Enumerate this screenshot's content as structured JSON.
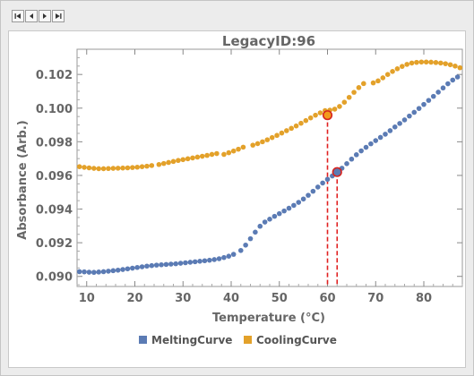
{
  "toolbar": {
    "buttons": [
      {
        "name": "first-page-button",
        "icon": "skip-to-start-icon"
      },
      {
        "name": "previous-page-button",
        "icon": "step-back-icon"
      },
      {
        "name": "next-page-button",
        "icon": "step-forward-icon"
      },
      {
        "name": "last-page-button",
        "icon": "skip-to-end-icon"
      }
    ]
  },
  "colors": {
    "melting": "#5b7bb4",
    "cooling": "#e3a12a",
    "marker_cooling_fill": "#f29a1c",
    "marker_outline": "#d6231e",
    "marker_melting_fill": "#5b7bb4",
    "vline": "#e02020",
    "text": "#666666"
  },
  "chart_data": {
    "type": "scatter",
    "title": "LegacyID:96",
    "xlabel": "Temperature  (°C)",
    "ylabel": "Absorbance  (Arb.)",
    "xlim": [
      8,
      88
    ],
    "ylim": [
      0.0894,
      0.1035
    ],
    "xticks": [
      10,
      20,
      30,
      40,
      50,
      60,
      70,
      80
    ],
    "yticks": [
      0.09,
      0.092,
      0.094,
      0.096,
      0.098,
      0.1,
      0.102
    ],
    "ytick_labels": [
      "0.090",
      "0.092",
      "0.094",
      "0.096",
      "0.098",
      "0.100",
      "0.102"
    ],
    "legend_position": "bottom",
    "series": [
      {
        "name": "MeltingCurve",
        "x": [
          8.5,
          9.5,
          10.5,
          11.5,
          12.5,
          13.5,
          14.5,
          15.5,
          16.5,
          17.5,
          18.5,
          19.5,
          20.5,
          21.5,
          22.5,
          23.5,
          24.5,
          25.5,
          26.5,
          27.5,
          28.5,
          29.5,
          30.5,
          31.5,
          32.5,
          33.5,
          34.5,
          35.5,
          36.5,
          37.5,
          38.5,
          39.5,
          40.5,
          42.0,
          43.0,
          44.0,
          45.0,
          46.0,
          47.0,
          48.0,
          49.0,
          50.0,
          51.0,
          52.0,
          53.0,
          54.0,
          55.0,
          56.0,
          57.0,
          58.0,
          59.0,
          60.0,
          61.0,
          62.0,
          63.0,
          64.0,
          65.0,
          66.0,
          67.0,
          68.0,
          69.0,
          70.0,
          71.0,
          72.0,
          73.0,
          74.0,
          75.0,
          76.0,
          77.0,
          78.0,
          79.0,
          80.0,
          81.0,
          82.0,
          83.0,
          84.0,
          85.0,
          86.0,
          87.0
        ],
        "y": [
          0.09028,
          0.09027,
          0.09025,
          0.09024,
          0.09026,
          0.09028,
          0.09031,
          0.09034,
          0.09037,
          0.09041,
          0.09045,
          0.09049,
          0.09053,
          0.09057,
          0.09061,
          0.09064,
          0.09067,
          0.09069,
          0.09071,
          0.09073,
          0.09075,
          0.09078,
          0.09081,
          0.09084,
          0.09087,
          0.0909,
          0.09093,
          0.09096,
          0.091,
          0.09105,
          0.09112,
          0.0912,
          0.09131,
          0.09154,
          0.09186,
          0.09224,
          0.09263,
          0.09298,
          0.09323,
          0.0934,
          0.09357,
          0.09373,
          0.09389,
          0.09405,
          0.09422,
          0.0944,
          0.0946,
          0.09482,
          0.09506,
          0.09531,
          0.09555,
          0.09577,
          0.09597,
          0.09618,
          0.09643,
          0.0967,
          0.09697,
          0.09723,
          0.09746,
          0.09767,
          0.09788,
          0.09807,
          0.09826,
          0.09845,
          0.09866,
          0.09888,
          0.09909,
          0.0993,
          0.09953,
          0.09975,
          0.09998,
          0.10022,
          0.10046,
          0.1007,
          0.10095,
          0.1012,
          0.10145,
          0.10167,
          0.10185
        ]
      },
      {
        "name": "CoolingCurve",
        "x": [
          8.5,
          9.5,
          10.5,
          11.5,
          12.5,
          13.5,
          14.5,
          15.5,
          16.5,
          17.5,
          18.5,
          19.5,
          20.5,
          21.5,
          22.5,
          23.5,
          25.0,
          26.0,
          27.0,
          28.0,
          29.0,
          30.0,
          31.0,
          32.0,
          33.0,
          34.0,
          35.0,
          36.0,
          37.0,
          38.5,
          39.5,
          40.5,
          41.5,
          42.5,
          44.5,
          45.5,
          46.5,
          47.5,
          48.5,
          49.5,
          50.5,
          51.5,
          52.5,
          53.5,
          54.5,
          55.5,
          56.5,
          57.5,
          58.5,
          59.5,
          60.5,
          61.5,
          62.5,
          63.5,
          64.5,
          65.5,
          66.5,
          67.5,
          69.5,
          70.5,
          71.5,
          72.5,
          73.5,
          74.5,
          75.5,
          76.5,
          77.5,
          78.5,
          79.5,
          80.5,
          81.5,
          82.5,
          83.5,
          84.5,
          85.5,
          86.5,
          87.5
        ],
        "y": [
          0.09652,
          0.09648,
          0.09645,
          0.09642,
          0.0964,
          0.0964,
          0.09641,
          0.09642,
          0.09643,
          0.09644,
          0.09645,
          0.09647,
          0.09649,
          0.09652,
          0.09655,
          0.09659,
          0.09665,
          0.09671,
          0.09677,
          0.09683,
          0.09689,
          0.09694,
          0.09699,
          0.09704,
          0.09709,
          0.09714,
          0.09719,
          0.09725,
          0.0973,
          0.09725,
          0.09735,
          0.09745,
          0.09756,
          0.09768,
          0.0978,
          0.09789,
          0.098,
          0.09812,
          0.09825,
          0.09838,
          0.09852,
          0.09866,
          0.0988,
          0.09894,
          0.0991,
          0.09926,
          0.09942,
          0.09958,
          0.09972,
          0.09985,
          0.09988,
          0.09994,
          0.1001,
          0.10035,
          0.10064,
          0.10094,
          0.10122,
          0.10146,
          0.1015,
          0.10162,
          0.1018,
          0.102,
          0.10218,
          0.10234,
          0.10248,
          0.1026,
          0.10268,
          0.10272,
          0.10274,
          0.10274,
          0.10273,
          0.10271,
          0.10268,
          0.10264,
          0.10258,
          0.1025,
          0.1024
        ]
      }
    ],
    "markers": [
      {
        "series": "CoolingCurve",
        "x": 60.0,
        "y": 0.09958
      },
      {
        "series": "MeltingCurve",
        "x": 62.0,
        "y": 0.0962
      }
    ]
  }
}
